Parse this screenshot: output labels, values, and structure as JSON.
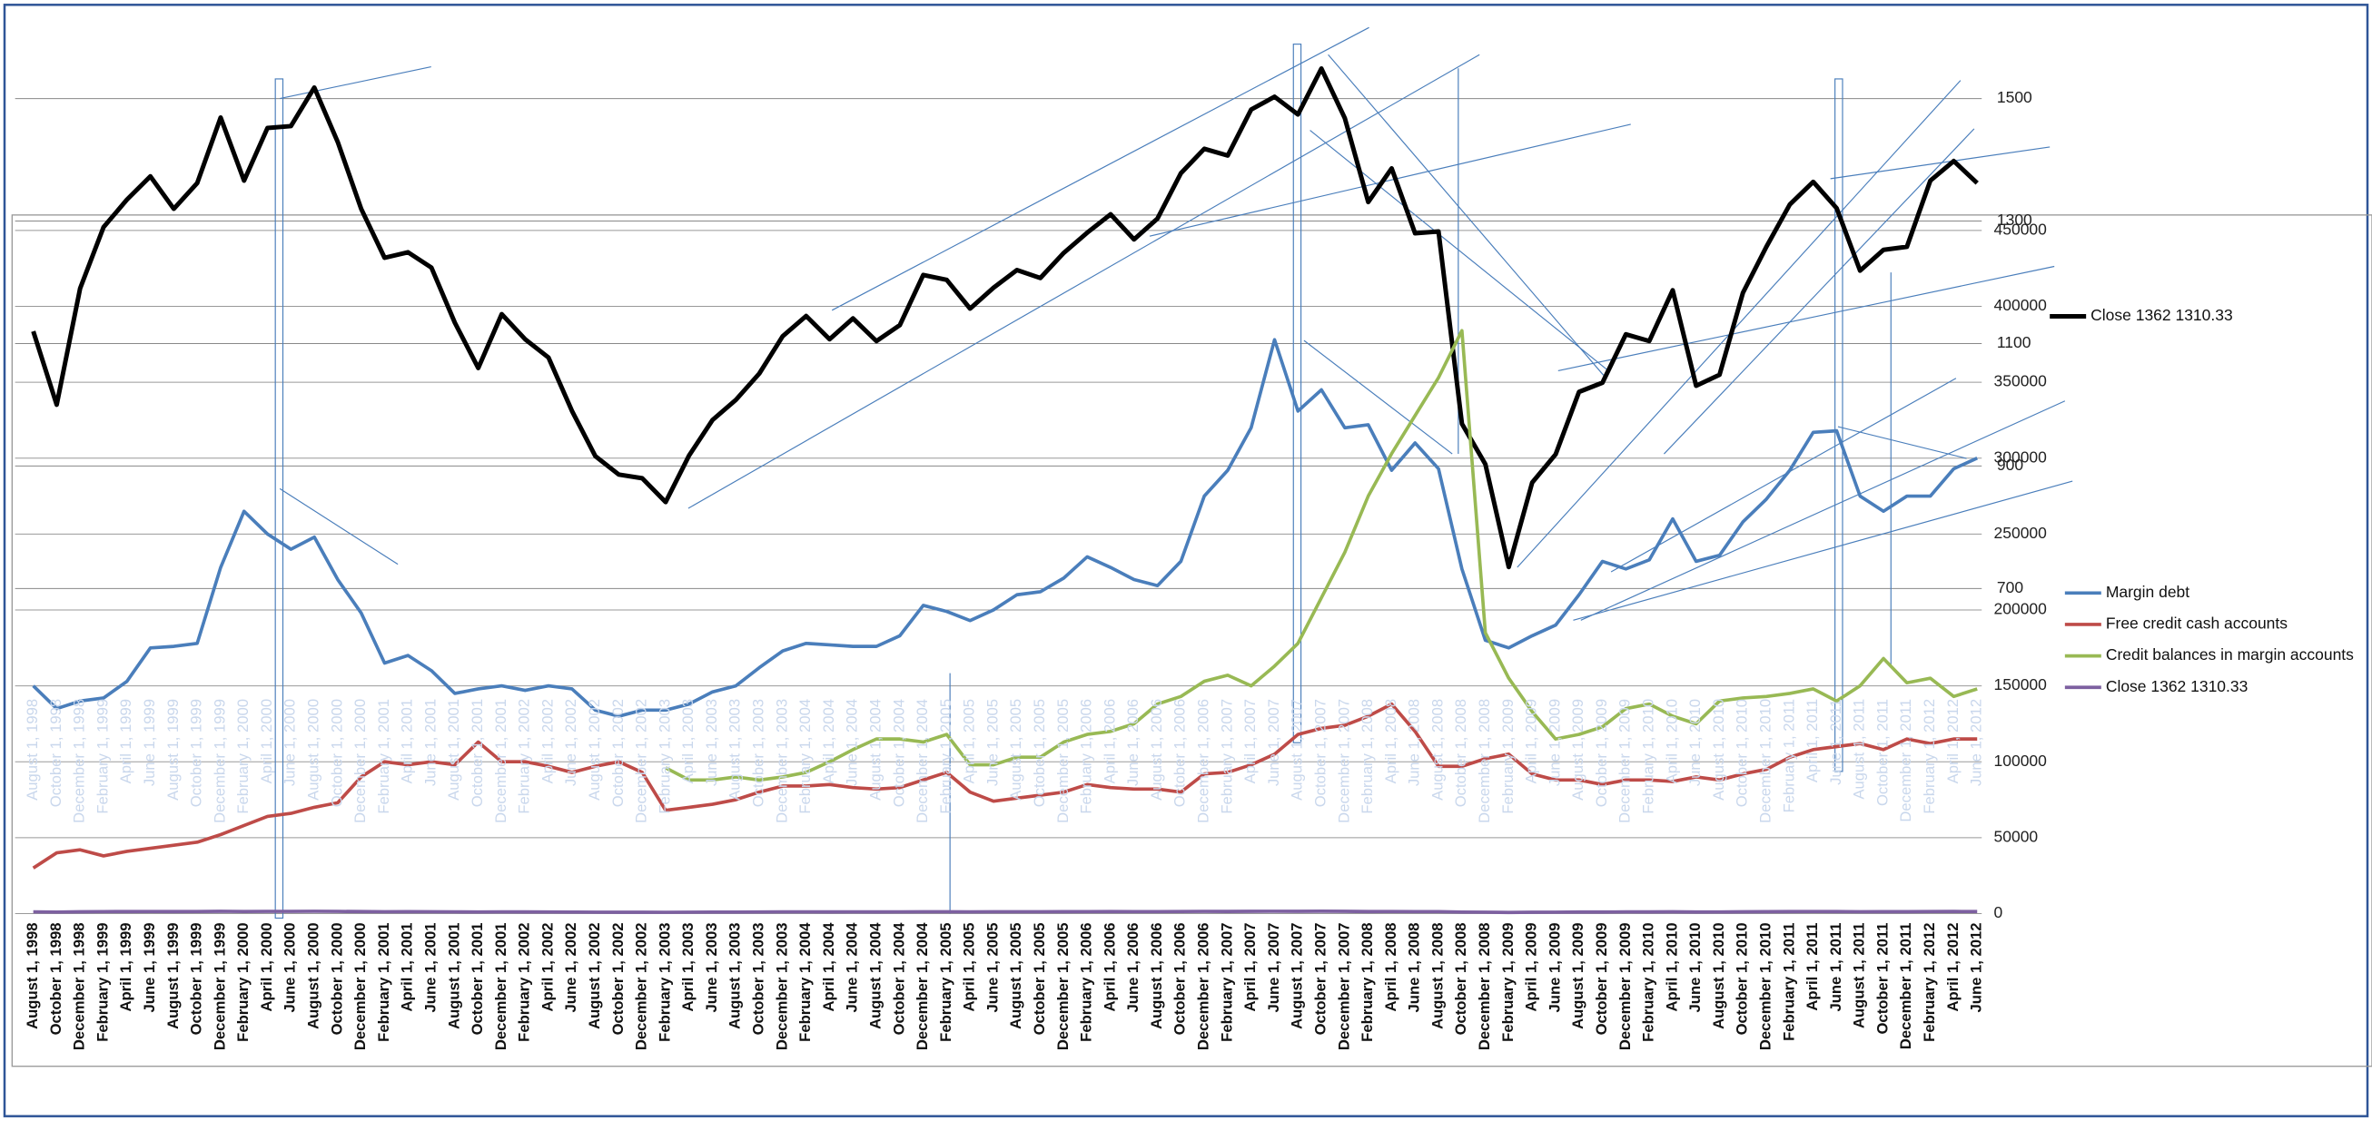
{
  "chart_data": [
    {
      "type": "line",
      "categories": [
        "August 1, 1998",
        "October 1, 1998",
        "December 1, 1998",
        "February 1, 1999",
        "April 1, 1999",
        "June 1, 1999",
        "August 1, 1999",
        "October 1, 1999",
        "December 1, 1999",
        "February 1, 2000",
        "April 1, 2000",
        "June 1, 2000",
        "August 1, 2000",
        "October 1, 2000",
        "December 1, 2000",
        "February 1, 2001",
        "April 1, 2001",
        "June 1, 2001",
        "August 1, 2001",
        "October 1, 2001",
        "December 1, 2001",
        "February 1, 2002",
        "April 1, 2002",
        "June 1, 2002",
        "August 1, 2002",
        "October 1, 2002",
        "December 1, 2002",
        "February 1, 2003",
        "April 1, 2003",
        "June 1, 2003",
        "August 1, 2003",
        "October 1, 2003",
        "December 1, 2003",
        "February 1, 2004",
        "April 1, 2004",
        "June 1, 2004",
        "August 1, 2004",
        "October 1, 2004",
        "December 1, 2004",
        "February 1, 2005",
        "April 1, 2005",
        "June 1, 2005",
        "August 1, 2005",
        "October 1, 2005",
        "December 1, 2005",
        "February 1, 2006",
        "April 1, 2006",
        "June 1, 2006",
        "August 1, 2006",
        "October 1, 2006",
        "December 1, 2006",
        "February 1, 2007",
        "April 1, 2007",
        "June 1, 2007",
        "August 1, 2007",
        "October 1, 2007",
        "December 1, 2007",
        "February 1, 2008",
        "April 1, 2008",
        "June 1, 2008",
        "August 1, 2008",
        "October 1, 2008",
        "December 1, 2008",
        "February 1, 2009",
        "April 1, 2009",
        "June 1, 2009",
        "August 1, 2009",
        "October 1, 2009",
        "December 1, 2009",
        "February 1, 2010",
        "April 1, 2010",
        "June 1, 2010",
        "August 1, 2010",
        "October 1, 2010",
        "December 1, 2010",
        "February 1, 2011",
        "April 1, 2011",
        "June 1, 2011",
        "August 1, 2011",
        "October 1, 2011",
        "December 1, 2011",
        "February 1, 2012",
        "April 1, 2012",
        "June 1, 2012"
      ],
      "series": [
        {
          "name": "Close 1362 1310.33",
          "color": "#000000",
          "values": [
            1120,
            1000,
            1190,
            1290,
            1335,
            1373,
            1320,
            1362,
            1469,
            1366,
            1452,
            1455,
            1518,
            1429,
            1320,
            1240,
            1249,
            1224,
            1134,
            1060,
            1148,
            1107,
            1077,
            990,
            916,
            886,
            880,
            841,
            917,
            975,
            1008,
            1051,
            1112,
            1145,
            1107,
            1141,
            1104,
            1130,
            1212,
            1204,
            1157,
            1191,
            1220,
            1207,
            1248,
            1281,
            1311,
            1270,
            1304,
            1378,
            1418,
            1407,
            1482,
            1503,
            1474,
            1549,
            1468,
            1331,
            1386,
            1280,
            1283,
            969,
            903,
            735,
            873,
            919,
            1021,
            1036,
            1115,
            1104,
            1187,
            1031,
            1049,
            1183,
            1258,
            1327,
            1364,
            1321,
            1219,
            1253,
            1258,
            1366,
            1398,
            1362
          ]
        }
      ],
      "ylim": [
        700,
        1600
      ],
      "yticks": [
        700,
        900,
        1100,
        1300,
        1500
      ],
      "grid": true
    },
    {
      "type": "line",
      "categories": [
        "August 1, 1998",
        "October 1, 1998",
        "December 1, 1998",
        "February 1, 1999",
        "April 1, 1999",
        "June 1, 1999",
        "August 1, 1999",
        "October 1, 1999",
        "December 1, 1999",
        "February 1, 2000",
        "April 1, 2000",
        "June 1, 2000",
        "August 1, 2000",
        "October 1, 2000",
        "December 1, 2000",
        "February 1, 2001",
        "April 1, 2001",
        "June 1, 2001",
        "August 1, 2001",
        "October 1, 2001",
        "December 1, 2001",
        "February 1, 2002",
        "April 1, 2002",
        "June 1, 2002",
        "August 1, 2002",
        "October 1, 2002",
        "December 1, 2002",
        "February 1, 2003",
        "April 1, 2003",
        "June 1, 2003",
        "August 1, 2003",
        "October 1, 2003",
        "December 1, 2003",
        "February 1, 2004",
        "April 1, 2004",
        "June 1, 2004",
        "August 1, 2004",
        "October 1, 2004",
        "December 1, 2004",
        "February 1, 2005",
        "April 1, 2005",
        "June 1, 2005",
        "August 1, 2005",
        "October 1, 2005",
        "December 1, 2005",
        "February 1, 2006",
        "April 1, 2006",
        "June 1, 2006",
        "August 1, 2006",
        "October 1, 2006",
        "December 1, 2006",
        "February 1, 2007",
        "April 1, 2007",
        "June 1, 2007",
        "August 1, 2007",
        "October 1, 2007",
        "December 1, 2007",
        "February 1, 2008",
        "April 1, 2008",
        "June 1, 2008",
        "August 1, 2008",
        "October 1, 2008",
        "December 1, 2008",
        "February 1, 2009",
        "April 1, 2009",
        "June 1, 2009",
        "August 1, 2009",
        "October 1, 2009",
        "December 1, 2009",
        "February 1, 2010",
        "April 1, 2010",
        "June 1, 2010",
        "August 1, 2010",
        "October 1, 2010",
        "December 1, 2010",
        "February 1, 2011",
        "April 1, 2011",
        "June 1, 2011",
        "August 1, 2011",
        "October 1, 2011",
        "December 1, 2011",
        "February 1, 2012",
        "April 1, 2012",
        "June 1, 2012"
      ],
      "series": [
        {
          "name": "Margin debt",
          "color": "#4a7ebb",
          "values": [
            150000,
            135000,
            140000,
            142000,
            153000,
            175000,
            176000,
            178000,
            228000,
            265000,
            250000,
            240000,
            248000,
            220000,
            198000,
            165000,
            170000,
            160000,
            145000,
            148000,
            150000,
            147000,
            150000,
            148000,
            134000,
            130000,
            134000,
            134000,
            138000,
            146000,
            150000,
            162000,
            173000,
            178000,
            177000,
            176000,
            176000,
            183000,
            203000,
            199000,
            193000,
            200000,
            210000,
            212000,
            221000,
            235000,
            228000,
            220000,
            216000,
            232000,
            275000,
            292000,
            320000,
            378000,
            331000,
            345000,
            320000,
            322000,
            292000,
            310000,
            293000,
            227000,
            180000,
            175000,
            183000,
            190000,
            210000,
            232000,
            227000,
            233000,
            260000,
            232000,
            236000,
            258000,
            273000,
            292000,
            317000,
            318000,
            275000,
            265000,
            275000,
            275000,
            293000,
            300000
          ]
        },
        {
          "name": "Free credit cash accounts",
          "color": "#be4b48",
          "values": [
            30000,
            40000,
            42000,
            38000,
            41000,
            43000,
            45000,
            47000,
            52000,
            58000,
            64000,
            66000,
            70000,
            73000,
            90000,
            100000,
            98000,
            100000,
            98000,
            113000,
            100000,
            100000,
            97000,
            93000,
            97000,
            100000,
            93000,
            68000,
            70000,
            72000,
            75000,
            80000,
            84000,
            84000,
            85000,
            83000,
            82000,
            83000,
            88000,
            93000,
            80000,
            74000,
            76000,
            78000,
            80000,
            85000,
            83000,
            82000,
            82000,
            80000,
            92000,
            93000,
            98000,
            105000,
            118000,
            122000,
            124000,
            130000,
            138000,
            120000,
            97000,
            97000,
            102000,
            105000,
            92000,
            88000,
            88000,
            85000,
            88000,
            88000,
            87000,
            90000,
            88000,
            92000,
            95000,
            103000,
            108000,
            110000,
            112000,
            108000,
            115000,
            112000,
            115000,
            115000
          ]
        },
        {
          "name": "Credit balances in margin accounts",
          "color": "#98b954",
          "values": [
            null,
            null,
            null,
            null,
            null,
            null,
            null,
            null,
            null,
            null,
            null,
            null,
            null,
            null,
            null,
            null,
            null,
            null,
            null,
            null,
            null,
            null,
            null,
            null,
            null,
            null,
            null,
            96000,
            88000,
            88000,
            90000,
            88000,
            90000,
            93000,
            100000,
            108000,
            115000,
            115000,
            113000,
            118000,
            98000,
            98000,
            103000,
            103000,
            113000,
            118000,
            120000,
            125000,
            138000,
            143000,
            153000,
            157000,
            150000,
            163000,
            178000,
            208000,
            238000,
            275000,
            303000,
            328000,
            353000,
            384000,
            185000,
            155000,
            133000,
            115000,
            118000,
            123000,
            135000,
            138000,
            130000,
            125000,
            140000,
            142000,
            143000,
            145000,
            148000,
            140000,
            150000,
            168000,
            152000,
            155000,
            143000,
            148000
          ]
        },
        {
          "name": "Close 1362 1310.33",
          "color": "#7d60a0",
          "values": [
            1120,
            1000,
            1190,
            1290,
            1335,
            1373,
            1320,
            1362,
            1469,
            1366,
            1452,
            1455,
            1518,
            1429,
            1320,
            1240,
            1249,
            1224,
            1134,
            1060,
            1148,
            1107,
            1077,
            990,
            916,
            886,
            880,
            841,
            917,
            975,
            1008,
            1051,
            1112,
            1145,
            1107,
            1141,
            1104,
            1130,
            1212,
            1204,
            1157,
            1191,
            1220,
            1207,
            1248,
            1281,
            1311,
            1270,
            1304,
            1378,
            1418,
            1407,
            1482,
            1503,
            1474,
            1549,
            1468,
            1331,
            1386,
            1280,
            1283,
            969,
            903,
            735,
            873,
            919,
            1021,
            1036,
            1115,
            1104,
            1187,
            1031,
            1049,
            1183,
            1258,
            1327,
            1364,
            1321,
            1219,
            1253,
            1258,
            1366,
            1398,
            1362
          ]
        }
      ],
      "ylim": [
        0,
        450000
      ],
      "yticks": [
        0,
        50000,
        100000,
        150000,
        200000,
        250000,
        300000,
        350000,
        400000,
        450000
      ],
      "grid": true
    }
  ]
}
